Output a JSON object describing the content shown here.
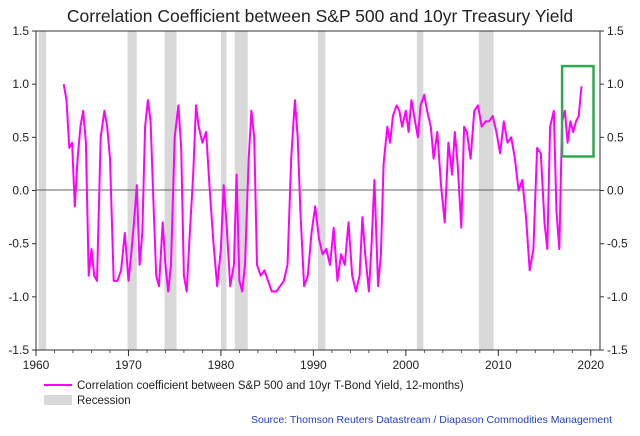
{
  "chart_data": {
    "type": "line",
    "title": "Correlation Coefficient between S&P 500 and 10yr Treasury Yield",
    "xlabel": "",
    "ylabel": "",
    "xlim": [
      1960,
      2021
    ],
    "ylim": [
      -1.5,
      1.5
    ],
    "x_ticks": [
      "1960",
      "1970",
      "1980",
      "1990",
      "2000",
      "2010",
      "2020"
    ],
    "y_ticks_left": [
      "1.5",
      "1.0",
      "0.5",
      "0.0",
      "-0.5",
      "-1.0",
      "-1.5"
    ],
    "y_ticks_right": [
      "1.5",
      "1.0",
      "0.5",
      "0.0",
      "-0.5",
      "-1.0",
      "-1.5"
    ],
    "grid": false,
    "legend_position": "bottom-left",
    "series": [
      {
        "name": "Correlation coefficient between S&P 500 and 10yr T-Bond Yield, 12-months)",
        "color": "#ff00ff",
        "points": [
          [
            1963.0,
            1.0
          ],
          [
            1963.3,
            0.85
          ],
          [
            1963.6,
            0.4
          ],
          [
            1963.9,
            0.45
          ],
          [
            1964.2,
            -0.15
          ],
          [
            1964.5,
            0.3
          ],
          [
            1964.8,
            0.6
          ],
          [
            1965.1,
            0.75
          ],
          [
            1965.4,
            0.45
          ],
          [
            1965.7,
            -0.8
          ],
          [
            1966.0,
            -0.55
          ],
          [
            1966.3,
            -0.8
          ],
          [
            1966.6,
            -0.85
          ],
          [
            1967.0,
            0.5
          ],
          [
            1967.4,
            0.75
          ],
          [
            1967.7,
            0.6
          ],
          [
            1968.0,
            0.3
          ],
          [
            1968.4,
            -0.85
          ],
          [
            1968.8,
            -0.85
          ],
          [
            1969.2,
            -0.75
          ],
          [
            1969.6,
            -0.4
          ],
          [
            1970.0,
            -0.85
          ],
          [
            1970.3,
            -0.6
          ],
          [
            1970.6,
            -0.3
          ],
          [
            1970.9,
            0.05
          ],
          [
            1971.2,
            -0.7
          ],
          [
            1971.5,
            -0.4
          ],
          [
            1971.8,
            0.6
          ],
          [
            1972.1,
            0.85
          ],
          [
            1972.4,
            0.65
          ],
          [
            1972.7,
            -0.1
          ],
          [
            1973.0,
            -0.8
          ],
          [
            1973.3,
            -0.9
          ],
          [
            1973.7,
            -0.3
          ],
          [
            1974.0,
            -0.7
          ],
          [
            1974.3,
            -0.95
          ],
          [
            1974.6,
            -0.7
          ],
          [
            1975.0,
            0.5
          ],
          [
            1975.4,
            0.8
          ],
          [
            1975.7,
            0.4
          ],
          [
            1976.0,
            -0.8
          ],
          [
            1976.3,
            -0.95
          ],
          [
            1976.6,
            -0.45
          ],
          [
            1977.0,
            0.15
          ],
          [
            1977.3,
            0.8
          ],
          [
            1977.6,
            0.6
          ],
          [
            1978.0,
            0.45
          ],
          [
            1978.4,
            0.55
          ],
          [
            1978.8,
            0.0
          ],
          [
            1979.2,
            -0.5
          ],
          [
            1979.6,
            -0.9
          ],
          [
            1980.0,
            -0.55
          ],
          [
            1980.3,
            0.05
          ],
          [
            1980.6,
            -0.3
          ],
          [
            1981.0,
            -0.9
          ],
          [
            1981.4,
            -0.7
          ],
          [
            1981.7,
            0.15
          ],
          [
            1982.0,
            -0.85
          ],
          [
            1982.3,
            -0.95
          ],
          [
            1982.6,
            -0.7
          ],
          [
            1983.0,
            0.3
          ],
          [
            1983.3,
            0.75
          ],
          [
            1983.6,
            0.5
          ],
          [
            1983.9,
            -0.7
          ],
          [
            1984.3,
            -0.8
          ],
          [
            1984.7,
            -0.75
          ],
          [
            1985.1,
            -0.85
          ],
          [
            1985.5,
            -0.95
          ],
          [
            1986.0,
            -0.95
          ],
          [
            1986.4,
            -0.9
          ],
          [
            1986.8,
            -0.85
          ],
          [
            1987.2,
            -0.7
          ],
          [
            1987.6,
            0.3
          ],
          [
            1988.0,
            0.85
          ],
          [
            1988.3,
            0.5
          ],
          [
            1988.6,
            -0.2
          ],
          [
            1989.0,
            -0.9
          ],
          [
            1989.4,
            -0.8
          ],
          [
            1989.8,
            -0.4
          ],
          [
            1990.2,
            -0.15
          ],
          [
            1990.6,
            -0.45
          ],
          [
            1991.0,
            -0.6
          ],
          [
            1991.4,
            -0.55
          ],
          [
            1991.8,
            -0.7
          ],
          [
            1992.2,
            -0.35
          ],
          [
            1992.6,
            -0.85
          ],
          [
            1993.0,
            -0.6
          ],
          [
            1993.4,
            -0.7
          ],
          [
            1993.8,
            -0.3
          ],
          [
            1994.2,
            -0.8
          ],
          [
            1994.6,
            -0.95
          ],
          [
            1995.0,
            -0.8
          ],
          [
            1995.3,
            -0.25
          ],
          [
            1995.6,
            -0.6
          ],
          [
            1996.0,
            -0.95
          ],
          [
            1996.3,
            -0.5
          ],
          [
            1996.6,
            0.1
          ],
          [
            1997.0,
            -0.9
          ],
          [
            1997.3,
            -0.6
          ],
          [
            1997.6,
            0.25
          ],
          [
            1998.0,
            0.6
          ],
          [
            1998.3,
            0.45
          ],
          [
            1998.6,
            0.7
          ],
          [
            1999.0,
            0.8
          ],
          [
            1999.3,
            0.75
          ],
          [
            1999.6,
            0.6
          ],
          [
            2000.0,
            0.75
          ],
          [
            2000.3,
            0.55
          ],
          [
            2000.6,
            0.85
          ],
          [
            2001.0,
            0.65
          ],
          [
            2001.3,
            0.5
          ],
          [
            2001.6,
            0.8
          ],
          [
            2002.0,
            0.9
          ],
          [
            2002.3,
            0.75
          ],
          [
            2002.7,
            0.6
          ],
          [
            2003.0,
            0.3
          ],
          [
            2003.4,
            0.55
          ],
          [
            2003.8,
            0.05
          ],
          [
            2004.2,
            -0.3
          ],
          [
            2004.6,
            0.45
          ],
          [
            2005.0,
            0.15
          ],
          [
            2005.3,
            0.55
          ],
          [
            2005.6,
            0.25
          ],
          [
            2006.0,
            -0.35
          ],
          [
            2006.3,
            0.6
          ],
          [
            2006.6,
            0.55
          ],
          [
            2007.0,
            0.3
          ],
          [
            2007.4,
            0.75
          ],
          [
            2007.8,
            0.8
          ],
          [
            2008.2,
            0.6
          ],
          [
            2008.6,
            0.65
          ],
          [
            2009.0,
            0.65
          ],
          [
            2009.4,
            0.7
          ],
          [
            2009.8,
            0.55
          ],
          [
            2010.2,
            0.35
          ],
          [
            2010.6,
            0.65
          ],
          [
            2011.0,
            0.45
          ],
          [
            2011.4,
            0.5
          ],
          [
            2011.8,
            0.3
          ],
          [
            2012.2,
            0.0
          ],
          [
            2012.6,
            0.1
          ],
          [
            2013.0,
            -0.25
          ],
          [
            2013.4,
            -0.75
          ],
          [
            2013.8,
            -0.55
          ],
          [
            2014.2,
            0.4
          ],
          [
            2014.6,
            0.35
          ],
          [
            2015.0,
            -0.3
          ],
          [
            2015.3,
            -0.55
          ],
          [
            2015.6,
            0.6
          ],
          [
            2016.0,
            0.75
          ],
          [
            2016.3,
            -0.2
          ],
          [
            2016.6,
            -0.55
          ],
          [
            2016.9,
            0.65
          ],
          [
            2017.2,
            0.75
          ],
          [
            2017.5,
            0.45
          ],
          [
            2017.8,
            0.65
          ],
          [
            2018.1,
            0.55
          ],
          [
            2018.4,
            0.65
          ],
          [
            2018.7,
            0.7
          ],
          [
            2019.0,
            0.98
          ]
        ]
      }
    ],
    "recession_label": "Recession",
    "recessions": [
      [
        1960.3,
        1961.1
      ],
      [
        1969.9,
        1970.9
      ],
      [
        1973.9,
        1975.2
      ],
      [
        1980.0,
        1980.6
      ],
      [
        1981.5,
        1982.9
      ],
      [
        1990.5,
        1991.3
      ],
      [
        2001.2,
        2001.9
      ],
      [
        2007.9,
        2009.5
      ]
    ],
    "highlight_box": {
      "x": [
        2016.9,
        2020.3
      ],
      "y": [
        0.32,
        1.17
      ],
      "color": "#2fa84f"
    },
    "source": "Source: Thomson Reuters Datastream / Diapason Commodities Management",
    "colors": {
      "series": "#ff00ff",
      "recession": "#d9d9d9",
      "highlight": "#2fa84f",
      "source_text": "#1f3fbf"
    }
  }
}
